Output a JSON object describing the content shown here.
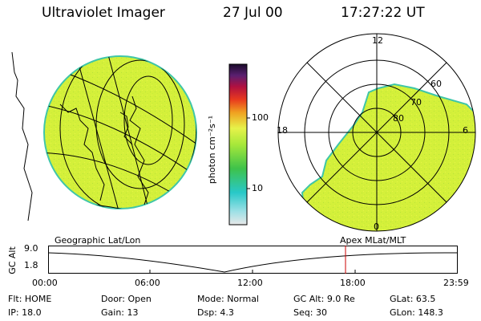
{
  "header": {
    "instrument": "Ultraviolet Imager",
    "date": "27 Jul 00",
    "time": "17:27:22 UT"
  },
  "colorbar": {
    "unit_label": "photon cm⁻²s⁻¹",
    "ticks": [
      "100",
      "10"
    ]
  },
  "polar_plot": {
    "mlt_labels": [
      "12",
      "18",
      "6",
      "0"
    ],
    "lat_labels": [
      "60",
      "70",
      "80"
    ]
  },
  "projection_labels": {
    "left": "Geographic Lat/Lon",
    "right": "Apex MLat/MLT"
  },
  "timeline": {
    "ylabel": "GC Alt",
    "y_ticks": [
      "9.0",
      "1.8"
    ],
    "x_ticks": [
      "00:00",
      "06:00",
      "12:00",
      "18:00",
      "23:59"
    ],
    "marker_time": "17:27"
  },
  "status": [
    {
      "label": "Flt:",
      "value": "HOME"
    },
    {
      "label": "Door:",
      "value": "Open"
    },
    {
      "label": "Mode:",
      "value": "Normal"
    },
    {
      "label": "GC Alt:",
      "value": "9.0 Re"
    },
    {
      "label": "GLat:",
      "value": "63.5"
    },
    {
      "label": "IP:",
      "value": "18.0"
    },
    {
      "label": "Gain:",
      "value": "13"
    },
    {
      "label": "Dsp:",
      "value": "4.3"
    },
    {
      "label": "Seq:",
      "value": "30"
    },
    {
      "label": "GLon:",
      "value": "148.3"
    }
  ],
  "colors": {
    "image_fill": "#d4f03a",
    "image_edge": "#3fc6a8",
    "marker": "#cc0000"
  }
}
